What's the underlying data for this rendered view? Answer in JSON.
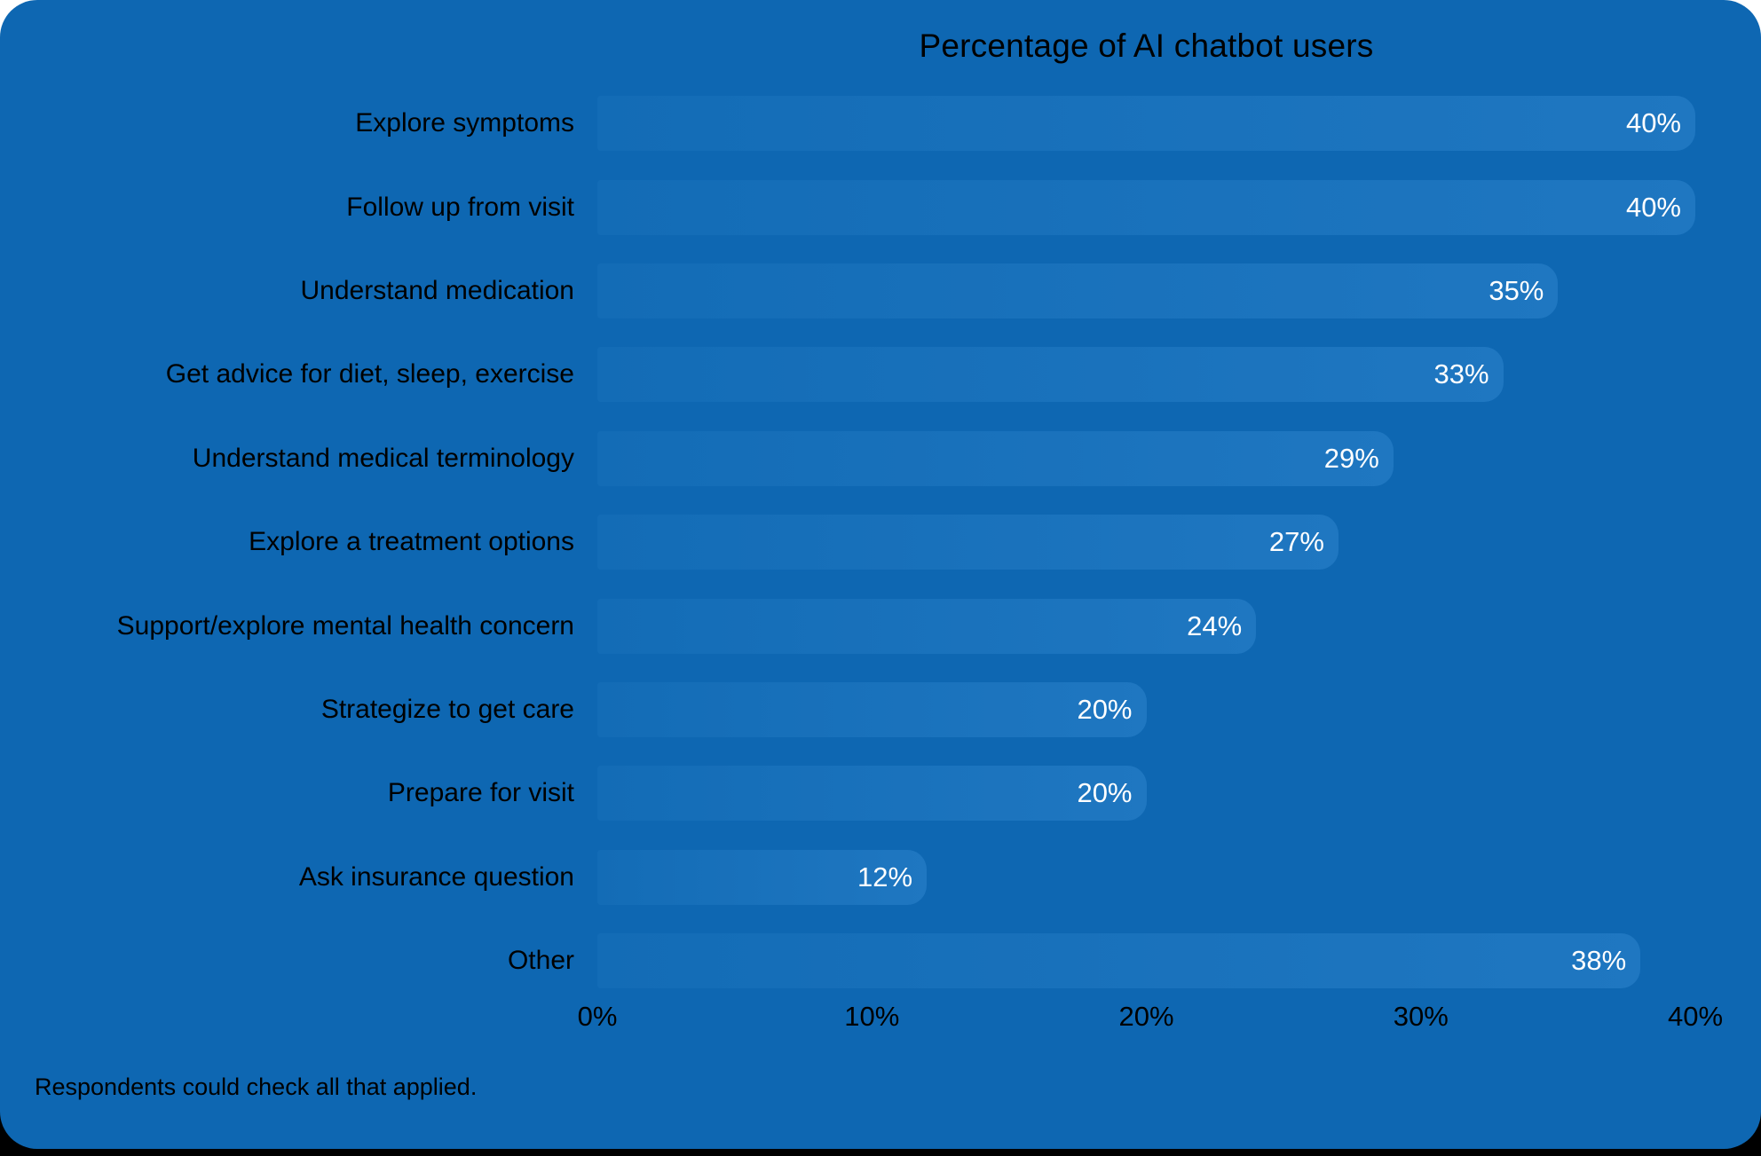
{
  "colors": {
    "page_bg": "#FFFFFF",
    "bottom_strip": "#000000",
    "card_bg": "#0E67B2",
    "bar_fill_left": "#136CB6",
    "bar_fill_right": "#1F77C1",
    "text_color": "#000000",
    "value_text_color": "#FFFFFF"
  },
  "footnote": "Respondents could check all that applied.",
  "chart_data": {
    "type": "bar",
    "orientation": "horizontal",
    "title": "Percentage of AI chatbot users",
    "categories": [
      "Explore symptoms",
      "Follow up from visit",
      "Understand medication",
      "Get advice for diet, sleep, exercise",
      "Understand medical terminology",
      "Explore a treatment options",
      "Support/explore mental health concern",
      "Strategize to get care",
      "Prepare for visit",
      "Ask insurance question",
      "Other"
    ],
    "values": [
      40,
      40,
      35,
      33,
      29,
      27,
      24,
      20,
      20,
      12,
      38
    ],
    "value_labels": [
      "40%",
      "40%",
      "35%",
      "33%",
      "29%",
      "27%",
      "24%",
      "20%",
      "20%",
      "12%",
      "38%"
    ],
    "x_ticks": [
      "0%",
      "10%",
      "20%",
      "30%",
      "40%"
    ],
    "x_tick_values": [
      0,
      10,
      20,
      30,
      40
    ],
    "xlim": [
      0,
      40
    ],
    "grid": false,
    "legend": false,
    "value_label_position": "inside-right",
    "note": "Respondents could check all that applied."
  }
}
